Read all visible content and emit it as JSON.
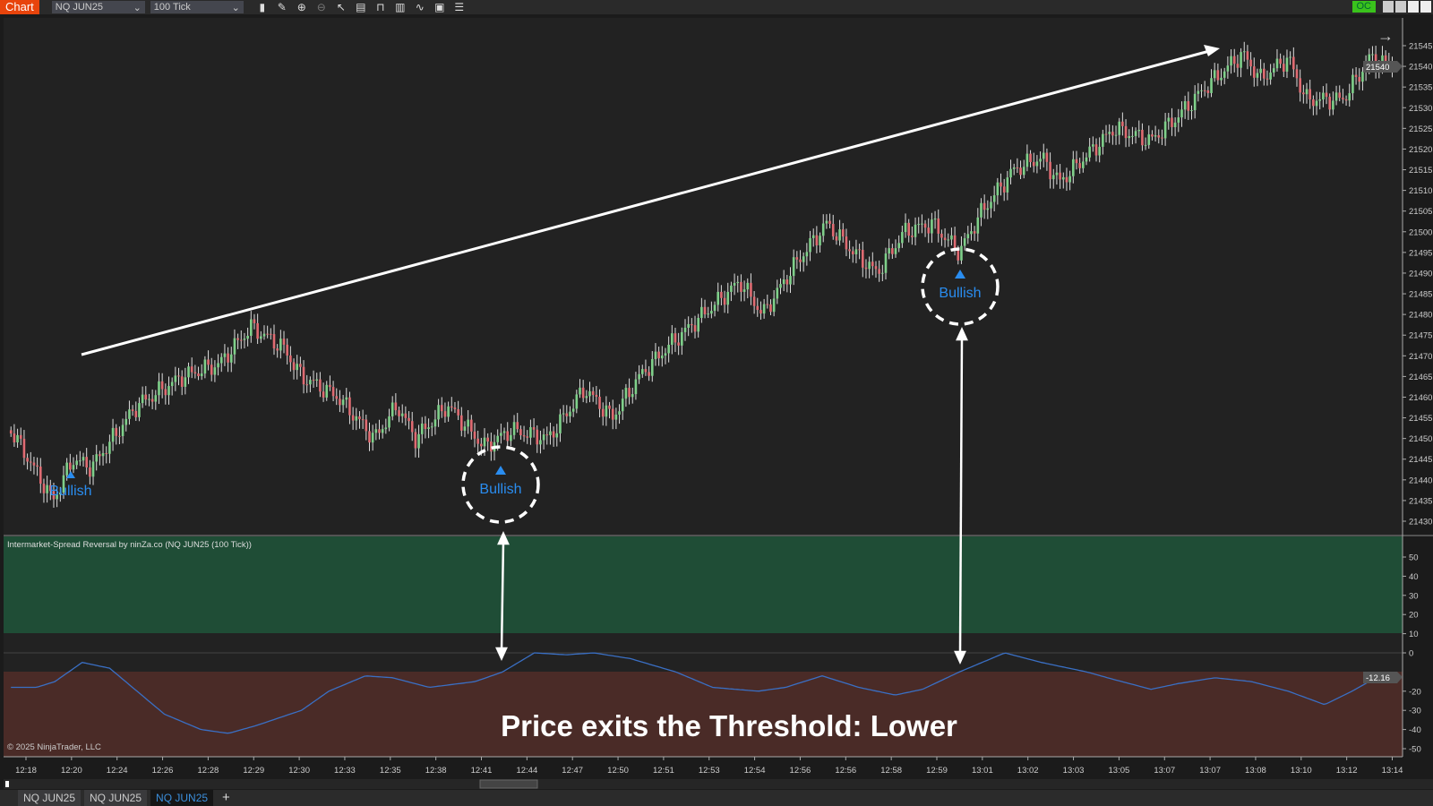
{
  "toolbar": {
    "chart_label": "Chart",
    "instrument": "NQ JUN25",
    "interval": "100 Tick",
    "connection": "OC"
  },
  "price_axis": {
    "labels": [
      "21545",
      "21540",
      "21535",
      "21530",
      "21525",
      "21520",
      "21515",
      "21510",
      "21505",
      "21500",
      "21495",
      "21490",
      "21485",
      "21480",
      "21475",
      "21470",
      "21465",
      "21460",
      "21455",
      "21450",
      "21445",
      "21440",
      "21435",
      "21430"
    ],
    "current": "21540"
  },
  "indicator": {
    "title": "Intermarket-Spread Reversal by ninZa.co (NQ JUN25 (100 Tick))",
    "axis_labels": [
      "50",
      "40",
      "30",
      "20",
      "10",
      "0",
      "-20",
      "-30",
      "-40",
      "-50"
    ],
    "current": "-12.16",
    "upper_band_color": "#1f4d36",
    "lower_band_color": "#4a2b27",
    "line_color": "#3a6fc4"
  },
  "signals": [
    {
      "label": "Bullish"
    },
    {
      "label": "Bullish"
    },
    {
      "label": "Bullish"
    }
  ],
  "annotation": "Price exits the Threshold: Lower",
  "copyright": "© 2025 NinjaTrader, LLC",
  "time_axis": [
    "12:18",
    "12:20",
    "12:24",
    "12:26",
    "12:28",
    "12:29",
    "12:30",
    "12:33",
    "12:35",
    "12:38",
    "12:41",
    "12:44",
    "12:47",
    "12:50",
    "12:51",
    "12:53",
    "12:54",
    "12:56",
    "12:56",
    "12:58",
    "12:59",
    "13:01",
    "13:02",
    "13:03",
    "13:05",
    "13:07",
    "13:07",
    "13:08",
    "13:10",
    "13:12",
    "13:14"
  ],
  "tabs": [
    {
      "label": "NQ JUN25"
    },
    {
      "label": "NQ JUN25"
    },
    {
      "label": "NQ JUN25",
      "active": true
    }
  ],
  "colors": {
    "up": "#7fd08a",
    "down": "#e06b72",
    "signal": "#2a8df0"
  }
}
